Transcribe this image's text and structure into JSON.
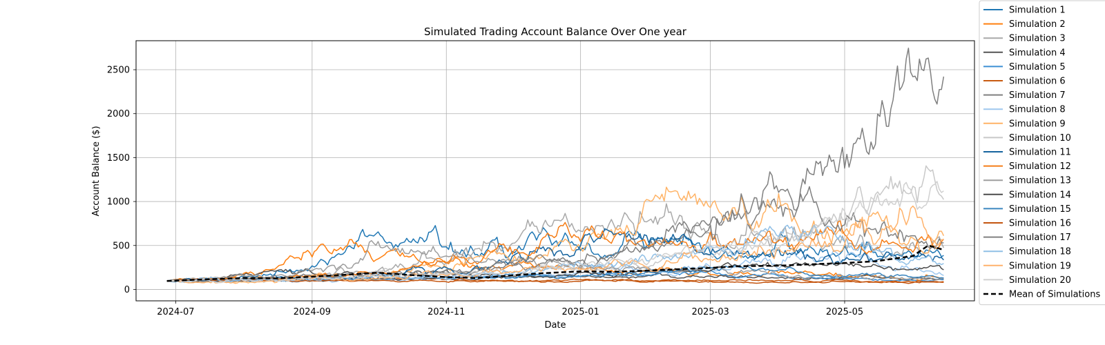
{
  "chart_data": {
    "type": "line",
    "title": "Simulated Trading Account Balance Over One year",
    "xlabel": "Date",
    "ylabel": "Account Balance ($)",
    "x_start": "2024-06-27",
    "x_end": "2025-06-15",
    "xlim": [
      "2024-06-13",
      "2025-06-29"
    ],
    "ylim": [
      -130,
      2830
    ],
    "x_ticks": [
      {
        "date": "2024-07-01",
        "label": "2024-07"
      },
      {
        "date": "2024-09-01",
        "label": "2024-09"
      },
      {
        "date": "2024-11-01",
        "label": "2024-11"
      },
      {
        "date": "2025-01-01",
        "label": "2025-01"
      },
      {
        "date": "2025-03-01",
        "label": "2025-03"
      },
      {
        "date": "2025-05-01",
        "label": "2025-05"
      }
    ],
    "y_ticks": [
      0,
      500,
      1000,
      1500,
      2000,
      2500
    ],
    "grid": true,
    "legend_position": "outside-right",
    "mean_series_style": {
      "color": "#000000",
      "dash": true
    },
    "series": [
      {
        "name": "Simulation 1",
        "color": "#1f77b4",
        "start": 100,
        "end": 390,
        "peak": 600,
        "peak_date": "2024-09-28",
        "vol": 0.09
      },
      {
        "name": "Simulation 2",
        "color": "#ff7f0e",
        "start": 100,
        "end": 130,
        "peak": 520,
        "peak_date": "2024-09-05",
        "vol": 0.08
      },
      {
        "name": "Simulation 3",
        "color": "#a9a9a9",
        "start": 100,
        "end": 450,
        "peak": 880,
        "peak_date": "2024-12-25",
        "vol": 0.09
      },
      {
        "name": "Simulation 4",
        "color": "#545454",
        "start": 100,
        "end": 120,
        "peak": 200,
        "peak_date": "2024-08-10",
        "vol": 0.06
      },
      {
        "name": "Simulation 5",
        "color": "#3c8fd4",
        "start": 100,
        "end": 110,
        "peak": 190,
        "peak_date": "2025-02-10",
        "vol": 0.06
      },
      {
        "name": "Simulation 6",
        "color": "#c85a10",
        "start": 100,
        "end": 90,
        "peak": 130,
        "peak_date": "2024-07-20",
        "vol": 0.05
      },
      {
        "name": "Simulation 7",
        "color": "#7f7f7f",
        "start": 100,
        "end": 2450,
        "peak": 2700,
        "peak_date": "2025-06-08",
        "vol": 0.08
      },
      {
        "name": "Simulation 8",
        "color": "#9ec7ee",
        "start": 100,
        "end": 160,
        "peak": 420,
        "peak_date": "2025-05-05",
        "vol": 0.08
      },
      {
        "name": "Simulation 9",
        "color": "#ffb366",
        "start": 100,
        "end": 600,
        "peak": 1100,
        "peak_date": "2025-02-12",
        "vol": 0.09
      },
      {
        "name": "Simulation 10",
        "color": "#c8c8c8",
        "start": 100,
        "end": 1000,
        "peak": 1350,
        "peak_date": "2025-06-10",
        "vol": 0.08
      },
      {
        "name": "Simulation 11",
        "color": "#15639e",
        "start": 100,
        "end": 320,
        "peak": 630,
        "peak_date": "2025-01-18",
        "vol": 0.09
      },
      {
        "name": "Simulation 12",
        "color": "#f57d17",
        "start": 100,
        "end": 580,
        "peak": 580,
        "peak_date": "2024-12-20",
        "vol": 0.08
      },
      {
        "name": "Simulation 13",
        "color": "#9d9d9d",
        "start": 100,
        "end": 130,
        "peak": 500,
        "peak_date": "2024-10-05",
        "vol": 0.08
      },
      {
        "name": "Simulation 14",
        "color": "#4a4a4a",
        "start": 100,
        "end": 220,
        "peak": 300,
        "peak_date": "2025-04-20",
        "vol": 0.06
      },
      {
        "name": "Simulation 15",
        "color": "#3b86bf",
        "start": 100,
        "end": 130,
        "peak": 240,
        "peak_date": "2025-03-15",
        "vol": 0.06
      },
      {
        "name": "Simulation 16",
        "color": "#c3540f",
        "start": 100,
        "end": 80,
        "peak": 110,
        "peak_date": "2024-07-05",
        "vol": 0.05
      },
      {
        "name": "Simulation 17",
        "color": "#808080",
        "start": 100,
        "end": 520,
        "peak": 1130,
        "peak_date": "2025-04-05",
        "vol": 0.09
      },
      {
        "name": "Simulation 18",
        "color": "#8fbfe6",
        "start": 100,
        "end": 300,
        "peak": 700,
        "peak_date": "2025-04-25",
        "vol": 0.08
      },
      {
        "name": "Simulation 19",
        "color": "#ffb26b",
        "start": 100,
        "end": 570,
        "peak": 820,
        "peak_date": "2025-06-05",
        "vol": 0.09
      },
      {
        "name": "Simulation 20",
        "color": "#d0d0d0",
        "start": 100,
        "end": 1150,
        "peak": 1250,
        "peak_date": "2025-06-12",
        "vol": 0.08
      }
    ],
    "mean_series": {
      "name": "Mean of Simulations",
      "dates": [
        "2024-06-27",
        "2024-07-15",
        "2024-08-01",
        "2024-08-15",
        "2024-09-01",
        "2024-09-15",
        "2024-10-01",
        "2024-10-15",
        "2024-11-01",
        "2024-11-15",
        "2024-12-01",
        "2024-12-15",
        "2025-01-01",
        "2025-01-15",
        "2025-02-01",
        "2025-02-15",
        "2025-03-01",
        "2025-03-15",
        "2025-04-01",
        "2025-04-15",
        "2025-05-01",
        "2025-05-15",
        "2025-06-01",
        "2025-06-08",
        "2025-06-15"
      ],
      "values": [
        95,
        115,
        130,
        125,
        145,
        165,
        190,
        165,
        140,
        130,
        160,
        185,
        205,
        200,
        215,
        230,
        245,
        265,
        270,
        285,
        300,
        320,
        380,
        500,
        450
      ]
    }
  }
}
